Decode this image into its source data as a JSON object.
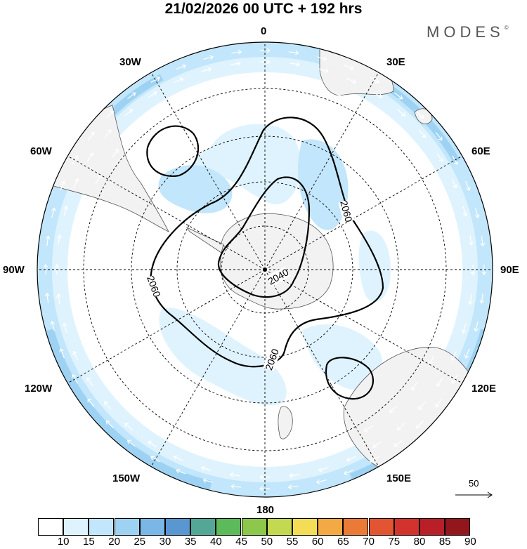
{
  "title": "21/02/2026  00 UTC  + 192 hrs",
  "brand": {
    "name": "MODES",
    "mark": "©"
  },
  "longitude_labels": {
    "n": "0",
    "nne": "30E",
    "ene": "60E",
    "e": "90E",
    "ese": "120E",
    "sse": "150E",
    "s": "180",
    "ssw": "150W",
    "wsw": "120W",
    "w": "90W",
    "wnw": "60W",
    "nnw": "30W"
  },
  "contours": [
    {
      "label": "2040"
    },
    {
      "label": "2060"
    },
    {
      "label": "2060"
    },
    {
      "label": "2060"
    }
  ],
  "reference_vector": {
    "label": "50"
  },
  "colorbar": {
    "labels": [
      "10",
      "15",
      "20",
      "25",
      "30",
      "35",
      "40",
      "45",
      "50",
      "55",
      "60",
      "65",
      "70",
      "75",
      "80",
      "85",
      "90"
    ],
    "colors": [
      "#ffffff",
      "#dff3ff",
      "#c2e6fb",
      "#9ed2f3",
      "#7ab6e6",
      "#5a96d0",
      "#54a697",
      "#5cba5a",
      "#8dc74c",
      "#c3d951",
      "#f4dd56",
      "#f4aa44",
      "#ec7a37",
      "#e35532",
      "#d2332c",
      "#b81f27",
      "#94161d"
    ]
  },
  "colors": {
    "land": "#f2f2f2",
    "ocean": "#ffffff",
    "wind_light": "#dff3ff",
    "wind_medium": "#c2e6fb",
    "wind_strong": "#9ed2f3"
  }
}
